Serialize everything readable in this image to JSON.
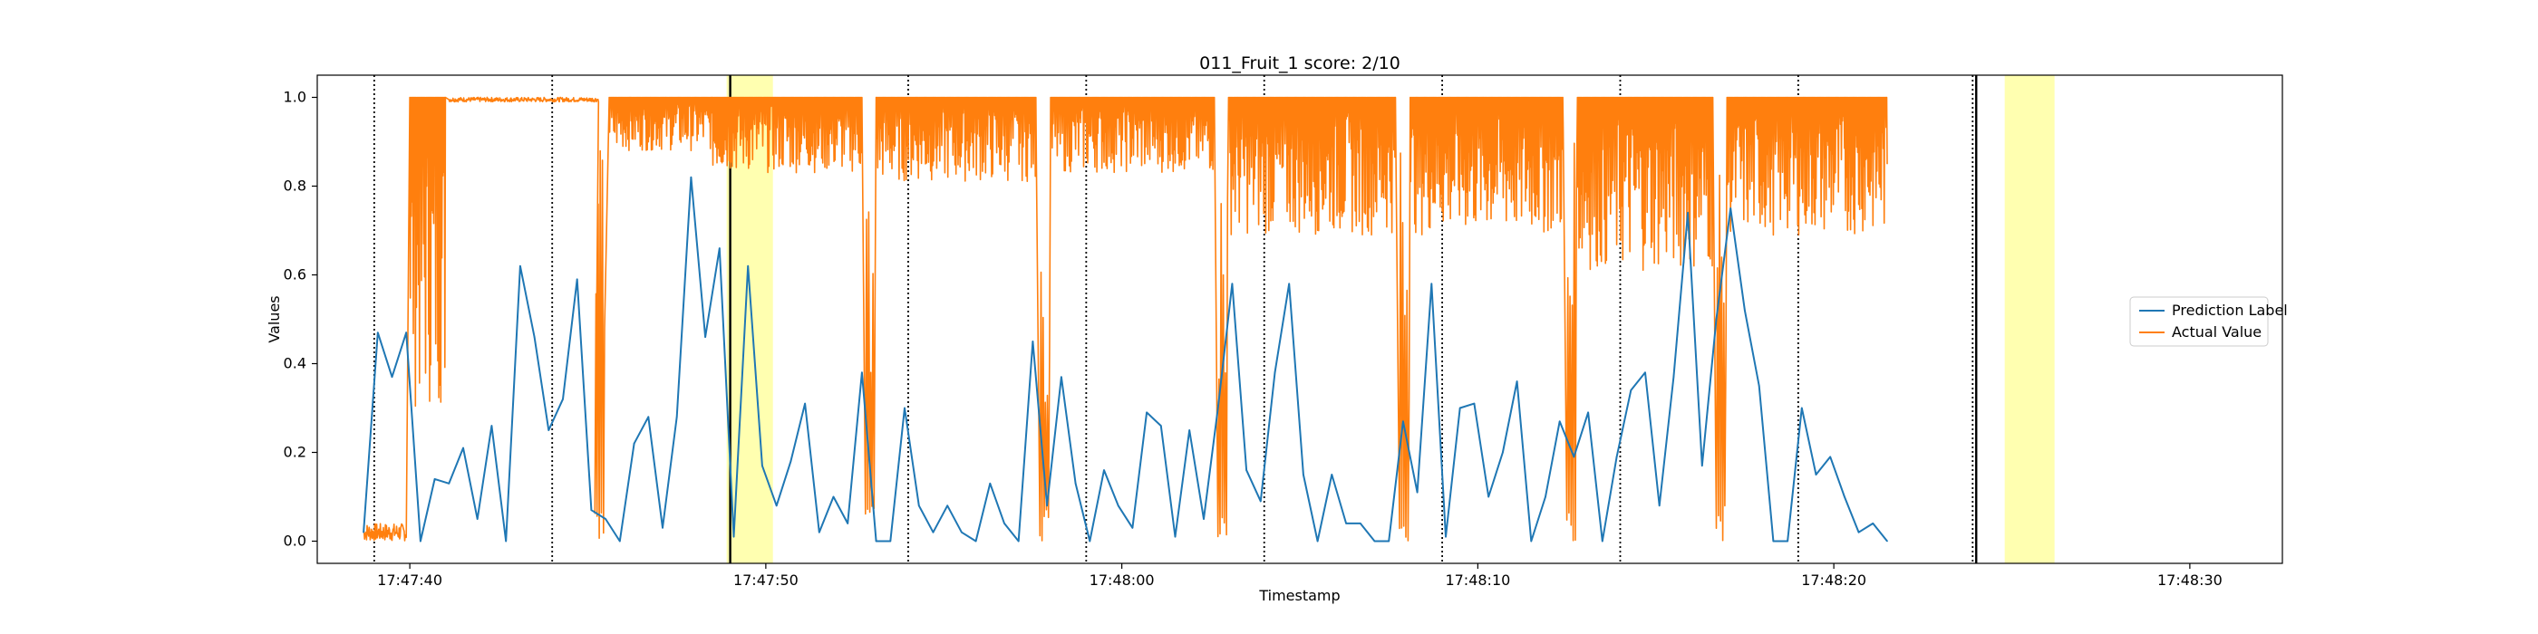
{
  "chart_data": {
    "type": "line",
    "title": "011_Fruit_1 score: 2/10",
    "xlabel": "Timestamp",
    "ylabel": "Values",
    "xlim": [
      "17:47:37.4",
      "17:48:32.6"
    ],
    "ylim": [
      -0.05,
      1.05
    ],
    "x_ticks": [
      "17:47:40",
      "17:47:50",
      "17:48:00",
      "17:48:10",
      "17:48:20",
      "17:48:30"
    ],
    "y_ticks": [
      "0.0",
      "0.2",
      "0.4",
      "0.6",
      "0.8",
      "1.0"
    ],
    "grid": false,
    "legend_position": "center-right",
    "series": [
      {
        "name": "Prediction Label",
        "color": "#1f77b4",
        "points": [
          [
            "17:47:38.7",
            0.02
          ],
          [
            "17:47:39.1",
            0.47
          ],
          [
            "17:47:39.5",
            0.37
          ],
          [
            "17:47:39.9",
            0.47
          ],
          [
            "17:47:40.3",
            0.0
          ],
          [
            "17:47:40.7",
            0.14
          ],
          [
            "17:47:41.1",
            0.13
          ],
          [
            "17:47:41.5",
            0.21
          ],
          [
            "17:47:41.9",
            0.05
          ],
          [
            "17:47:42.3",
            0.26
          ],
          [
            "17:47:42.7",
            0.0
          ],
          [
            "17:47:43.1",
            0.62
          ],
          [
            "17:47:43.5",
            0.46
          ],
          [
            "17:47:43.9",
            0.25
          ],
          [
            "17:47:44.3",
            0.32
          ],
          [
            "17:47:44.7",
            0.59
          ],
          [
            "17:47:45.1",
            0.07
          ],
          [
            "17:47:45.5",
            0.05
          ],
          [
            "17:47:45.9",
            0.0
          ],
          [
            "17:47:46.3",
            0.22
          ],
          [
            "17:47:46.7",
            0.28
          ],
          [
            "17:47:47.1",
            0.03
          ],
          [
            "17:47:47.5",
            0.28
          ],
          [
            "17:47:47.9",
            0.82
          ],
          [
            "17:47:48.3",
            0.46
          ],
          [
            "17:47:48.7",
            0.66
          ],
          [
            "17:47:49.1",
            0.01
          ],
          [
            "17:47:49.5",
            0.62
          ],
          [
            "17:47:49.9",
            0.17
          ],
          [
            "17:47:50.3",
            0.08
          ],
          [
            "17:47:50.7",
            0.18
          ],
          [
            "17:47:51.1",
            0.31
          ],
          [
            "17:47:51.5",
            0.02
          ],
          [
            "17:47:51.9",
            0.1
          ],
          [
            "17:47:52.3",
            0.04
          ],
          [
            "17:47:52.7",
            0.38
          ],
          [
            "17:47:53.1",
            0.0
          ],
          [
            "17:47:53.5",
            0.0
          ],
          [
            "17:47:53.9",
            0.3
          ],
          [
            "17:47:54.3",
            0.08
          ],
          [
            "17:47:54.7",
            0.02
          ],
          [
            "17:47:55.1",
            0.08
          ],
          [
            "17:47:55.5",
            0.02
          ],
          [
            "17:47:55.9",
            0.0
          ],
          [
            "17:47:56.3",
            0.13
          ],
          [
            "17:47:56.7",
            0.04
          ],
          [
            "17:47:57.1",
            0.0
          ],
          [
            "17:47:57.5",
            0.45
          ],
          [
            "17:47:57.9",
            0.08
          ],
          [
            "17:47:58.3",
            0.37
          ],
          [
            "17:47:58.7",
            0.13
          ],
          [
            "17:47:59.1",
            0.0
          ],
          [
            "17:47:59.5",
            0.16
          ],
          [
            "17:47:59.9",
            0.08
          ],
          [
            "17:48:00.3",
            0.03
          ],
          [
            "17:48:00.7",
            0.29
          ],
          [
            "17:48:01.1",
            0.26
          ],
          [
            "17:48:01.5",
            0.01
          ],
          [
            "17:48:01.9",
            0.25
          ],
          [
            "17:48:02.3",
            0.05
          ],
          [
            "17:48:02.7",
            0.3
          ],
          [
            "17:48:03.1",
            0.58
          ],
          [
            "17:48:03.5",
            0.16
          ],
          [
            "17:48:03.9",
            0.09
          ],
          [
            "17:48:04.3",
            0.38
          ],
          [
            "17:48:04.7",
            0.58
          ],
          [
            "17:48:05.1",
            0.15
          ],
          [
            "17:48:05.5",
            0.0
          ],
          [
            "17:48:05.9",
            0.15
          ],
          [
            "17:48:06.3",
            0.04
          ],
          [
            "17:48:06.7",
            0.04
          ],
          [
            "17:48:07.1",
            0.0
          ],
          [
            "17:48:07.5",
            0.0
          ],
          [
            "17:48:07.9",
            0.27
          ],
          [
            "17:48:08.3",
            0.11
          ],
          [
            "17:48:08.7",
            0.58
          ],
          [
            "17:48:09.1",
            0.01
          ],
          [
            "17:48:09.5",
            0.3
          ],
          [
            "17:48:09.9",
            0.31
          ],
          [
            "17:48:10.3",
            0.1
          ],
          [
            "17:48:10.7",
            0.2
          ],
          [
            "17:48:11.1",
            0.36
          ],
          [
            "17:48:11.5",
            0.0
          ],
          [
            "17:48:11.9",
            0.1
          ],
          [
            "17:48:12.3",
            0.27
          ],
          [
            "17:48:12.7",
            0.19
          ],
          [
            "17:48:13.1",
            0.29
          ],
          [
            "17:48:13.5",
            0.0
          ],
          [
            "17:48:13.9",
            0.19
          ],
          [
            "17:48:14.3",
            0.34
          ],
          [
            "17:48:14.7",
            0.38
          ],
          [
            "17:48:15.1",
            0.08
          ],
          [
            "17:48:15.5",
            0.37
          ],
          [
            "17:48:15.9",
            0.74
          ],
          [
            "17:48:16.3",
            0.17
          ],
          [
            "17:48:16.7",
            0.5
          ],
          [
            "17:48:17.1",
            0.75
          ],
          [
            "17:48:17.5",
            0.52
          ],
          [
            "17:48:17.9",
            0.35
          ],
          [
            "17:48:18.3",
            0.0
          ],
          [
            "17:48:18.7",
            0.0
          ],
          [
            "17:48:19.1",
            0.3
          ],
          [
            "17:48:19.5",
            0.15
          ],
          [
            "17:48:19.9",
            0.19
          ],
          [
            "17:48:20.3",
            0.1
          ],
          [
            "17:48:20.7",
            0.02
          ],
          [
            "17:48:21.1",
            0.04
          ],
          [
            "17:48:21.5",
            0.0
          ]
        ]
      },
      {
        "name": "Actual Value",
        "color": "#ff7f0e",
        "style": "dense-oscillating",
        "segments": [
          {
            "start": "17:47:38.7",
            "end": "17:47:39.9",
            "high": 0.04,
            "low": 0.0
          },
          {
            "start": "17:47:40.0",
            "end": "17:47:41.0",
            "high": 1.0,
            "low": 0.3
          },
          {
            "start": "17:47:41.1",
            "end": "17:47:45.3",
            "high": 1.0,
            "low": 0.99
          },
          {
            "start": "17:47:45.6",
            "end": "17:47:48.5",
            "high": 1.0,
            "low": 0.88
          },
          {
            "start": "17:47:48.5",
            "end": "17:47:52.7",
            "high": 1.0,
            "low": 0.83
          },
          {
            "start": "17:47:53.1",
            "end": "17:47:57.6",
            "high": 1.0,
            "low": 0.81
          },
          {
            "start": "17:47:58.0",
            "end": "17:48:02.6",
            "high": 1.0,
            "low": 0.83
          },
          {
            "start": "17:48:03.0",
            "end": "17:48:07.7",
            "high": 1.0,
            "low": 0.69
          },
          {
            "start": "17:48:08.1",
            "end": "17:48:12.4",
            "high": 1.0,
            "low": 0.69
          },
          {
            "start": "17:48:12.8",
            "end": "17:48:16.6",
            "high": 1.0,
            "low": 0.61
          },
          {
            "start": "17:48:17.0",
            "end": "17:48:21.5",
            "high": 1.0,
            "low": 0.69
          }
        ],
        "drops": [
          {
            "x": "17:47:45.2",
            "y": 0.0
          },
          {
            "x": "17:47:52.8",
            "y": 0.01
          },
          {
            "x": "17:47:57.7",
            "y": 0.0
          },
          {
            "x": "17:48:02.7",
            "y": 0.0
          },
          {
            "x": "17:48:07.8",
            "y": 0.0
          },
          {
            "x": "17:48:12.5",
            "y": 0.0
          },
          {
            "x": "17:48:16.7",
            "y": 0.0
          },
          {
            "x": "17:48:21.0",
            "y": 0.0
          }
        ]
      }
    ],
    "dotted_vlines": [
      "17:47:39.0",
      "17:47:44.0",
      "17:47:54.0",
      "17:47:59.0",
      "17:48:04.0",
      "17:48:09.0",
      "17:48:14.0",
      "17:48:19.0",
      "17:48:23.9"
    ],
    "solid_vlines": [
      "17:47:49.0",
      "17:48:24.0"
    ],
    "highlight_spans": [
      {
        "start": "17:47:48.9",
        "end": "17:47:50.2",
        "color": "#ffffb0"
      },
      {
        "start": "17:48:24.8",
        "end": "17:48:26.2",
        "color": "#ffffb0"
      }
    ]
  }
}
